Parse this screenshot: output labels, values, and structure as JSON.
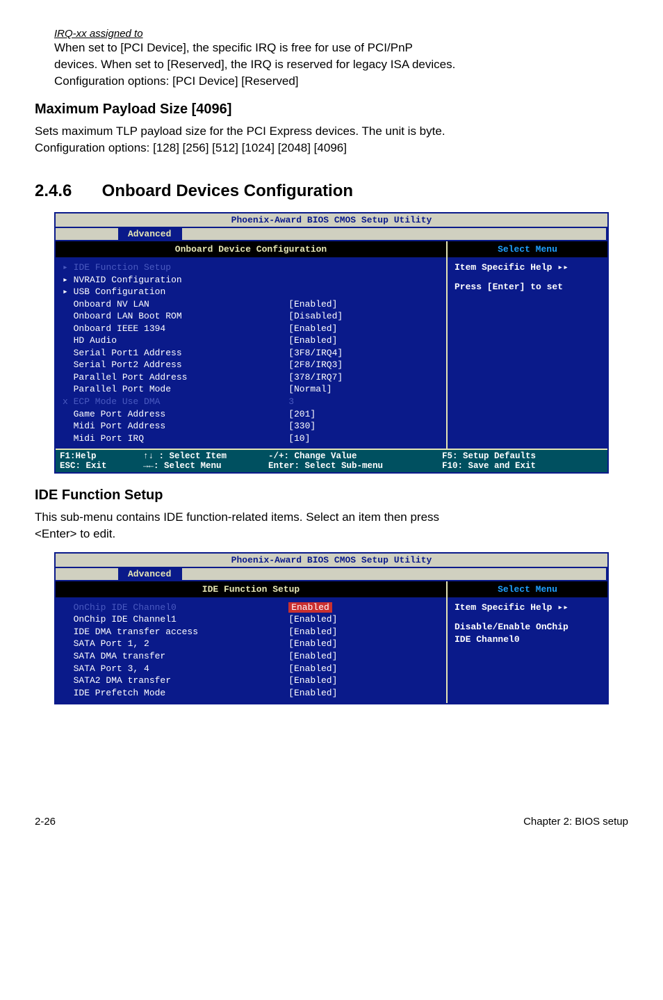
{
  "irq_heading": "IRQ-xx assigned to",
  "irq_body1": "When set to [PCI Device], the specific IRQ is free for use of PCI/PnP",
  "irq_body2": "devices. When set to [Reserved], the IRQ is reserved for legacy ISA devices.",
  "irq_body3": "Configuration options: [PCI Device] [Reserved]",
  "max_payload_heading": "Maximum Payload Size [4096]",
  "max_payload_body1": "Sets maximum TLP payload size for the PCI Express devices. The unit is byte.",
  "max_payload_body2": "Configuration options: [128] [256] [512] [1024] [2048] [4096]",
  "section_number": "2.4.6",
  "section_title": "Onboard Devices Configuration",
  "bios1": {
    "title": "Phoenix-Award BIOS CMOS Setup Utility",
    "tab": "Advanced",
    "left_header": "Onboard Device Configuration",
    "right_header": "Select Menu",
    "help_line1": "Item Specific Help",
    "help_line2": "Press [Enter] to set",
    "rows": [
      {
        "label": "IDE Function Setup",
        "val": "",
        "style": "faded",
        "arrow": "faded"
      },
      {
        "label": "NVRAID Configuration",
        "val": "",
        "style": "white",
        "arrow": "white"
      },
      {
        "label": "USB Configuration",
        "val": "",
        "style": "white",
        "arrow": "white"
      },
      {
        "label": "Onboard NV LAN",
        "val": "[Enabled]",
        "style": "white"
      },
      {
        "label": "Onboard LAN Boot ROM",
        "val": "[Disabled]",
        "style": "white"
      },
      {
        "label": "Onboard IEEE 1394",
        "val": "[Enabled]",
        "style": "white"
      },
      {
        "label": "HD Audio",
        "val": "[Enabled]",
        "style": "white"
      },
      {
        "label": "Serial Port1 Address",
        "val": "[3F8/IRQ4]",
        "style": "white"
      },
      {
        "label": "Serial Port2 Address",
        "val": "[2F8/IRQ3]",
        "style": "white"
      },
      {
        "label": "Parallel Port Address",
        "val": "[378/IRQ7]",
        "style": "white"
      },
      {
        "label": "Parallel Port Mode",
        "val": "[Normal]",
        "style": "white"
      },
      {
        "label": "ECP Mode Use DMA",
        "val": "3",
        "style": "faded",
        "xmark": true
      },
      {
        "label": "Game Port Address",
        "val": "[201]",
        "style": "white"
      },
      {
        "label": "Midi Port Address",
        "val": "[330]",
        "style": "white"
      },
      {
        "label": "Midi Port IRQ",
        "val": "[10]",
        "style": "white"
      }
    ],
    "footer": {
      "c1a": "F1:Help",
      "c1b": "ESC: Exit",
      "c2a": "↑↓ : Select Item",
      "c2b": "→←: Select Menu",
      "c3a": "-/+: Change Value",
      "c3b": "Enter: Select Sub-menu",
      "c4a": "F5: Setup Defaults",
      "c4b": "F10: Save and Exit"
    }
  },
  "ide_heading": "IDE Function Setup",
  "ide_body1": "This sub-menu contains IDE function-related items. Select an item then press",
  "ide_body2": "<Enter> to edit.",
  "bios2": {
    "title": "Phoenix-Award BIOS CMOS Setup Utility",
    "tab": "Advanced",
    "left_header": "IDE Function Setup",
    "right_header": "Select Menu",
    "help_line1": "Item Specific Help",
    "help_line2": "Disable/Enable OnChip",
    "help_line3": "IDE Channel0",
    "rows": [
      {
        "label": "OnChip IDE Channel0",
        "val": "Enabled",
        "style": "faded",
        "selected": true
      },
      {
        "label": "OnChip IDE Channel1",
        "val": "[Enabled]",
        "style": "white"
      },
      {
        "label": "IDE DMA transfer access",
        "val": "[Enabled]",
        "style": "white"
      },
      {
        "label": "SATA Port 1, 2",
        "val": "[Enabled]",
        "style": "white"
      },
      {
        "label": "SATA DMA transfer",
        "val": "[Enabled]",
        "style": "white"
      },
      {
        "label": "SATA Port 3, 4",
        "val": "[Enabled]",
        "style": "white"
      },
      {
        "label": "SATA2 DMA transfer",
        "val": "[Enabled]",
        "style": "white"
      },
      {
        "label": "IDE Prefetch Mode",
        "val": "[Enabled]",
        "style": "white"
      }
    ]
  },
  "page": {
    "left": "2-26",
    "right": "Chapter 2: BIOS setup"
  }
}
